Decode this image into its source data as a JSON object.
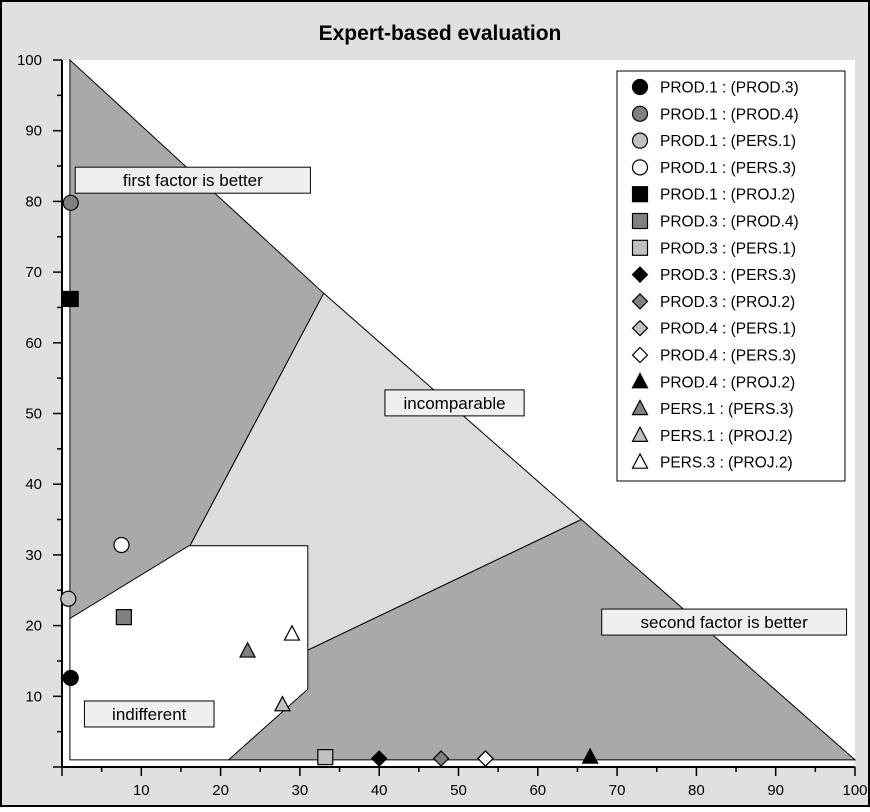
{
  "chart_data": {
    "type": "scatter",
    "title": "Expert-based evaluation",
    "xlabel": "",
    "ylabel": "",
    "xlim": [
      0,
      100
    ],
    "ylim": [
      0,
      100
    ],
    "x_ticks": [
      10,
      20,
      30,
      40,
      50,
      60,
      70,
      80,
      90,
      100
    ],
    "y_ticks": [
      10,
      20,
      30,
      40,
      50,
      60,
      70,
      80,
      90,
      100
    ],
    "grid": false,
    "legend_position": "top-right",
    "regions": [
      {
        "label": "first factor is better",
        "color": "#a9a9a9",
        "label_at": [
          16.5,
          83
        ]
      },
      {
        "label": "incomparable",
        "color": "#dcdcdc",
        "label_at": [
          49.5,
          51.5
        ]
      },
      {
        "label": "second factor is better",
        "color": "#a9a9a9",
        "label_at": [
          83.5,
          20.5
        ]
      },
      {
        "label": "indifferent",
        "color": "#ffffff",
        "label_at": [
          11,
          7.5
        ]
      }
    ],
    "series": [
      {
        "name": "PROD.1 : (PROD.3)",
        "marker": "circle",
        "fill": "#000000",
        "x": 1.1,
        "y": 12.6
      },
      {
        "name": "PROD.1 : (PROD.4)",
        "marker": "circle",
        "fill": "#808080",
        "x": 1.1,
        "y": 79.8
      },
      {
        "name": "PROD.1 : (PERS.1)",
        "marker": "circle",
        "fill": "#c0c0c0",
        "x": 0.8,
        "y": 23.8
      },
      {
        "name": "PROD.1 : (PERS.3)",
        "marker": "circle",
        "fill": "#ffffff",
        "x": 7.5,
        "y": 31.4
      },
      {
        "name": "PROD.1 : (PROJ.2)",
        "marker": "square",
        "fill": "#000000",
        "x": 1.1,
        "y": 66.2
      },
      {
        "name": "PROD.3 : (PROD.4)",
        "marker": "square",
        "fill": "#808080",
        "x": 7.8,
        "y": 21.2
      },
      {
        "name": "PROD.3 : (PERS.1)",
        "marker": "square",
        "fill": "#c0c0c0",
        "x": 33.2,
        "y": 1.4
      },
      {
        "name": "PROD.3 : (PERS.3)",
        "marker": "diamond",
        "fill": "#000000",
        "x": 40.0,
        "y": 1.2
      },
      {
        "name": "PROD.3 : (PROJ.2)",
        "marker": "diamond",
        "fill": "#808080",
        "x": 47.8,
        "y": 1.2
      },
      {
        "name": "PROD.4 : (PERS.1)",
        "marker": "diamond",
        "fill": "#c0c0c0",
        "x": 53.4,
        "y": 1.2
      },
      {
        "name": "PROD.4 : (PERS.3)",
        "marker": "diamond",
        "fill": "#ffffff",
        "x": 53.4,
        "y": 1.2
      },
      {
        "name": "PROD.4 : (PROJ.2)",
        "marker": "triangle",
        "fill": "#000000",
        "x": 66.6,
        "y": 1.4
      },
      {
        "name": "PERS.1 : (PERS.3)",
        "marker": "triangle",
        "fill": "#808080",
        "x": 23.4,
        "y": 16.4
      },
      {
        "name": "PERS.1 : (PROJ.2)",
        "marker": "triangle",
        "fill": "#c0c0c0",
        "x": 27.8,
        "y": 8.8
      },
      {
        "name": "PERS.3 : (PROJ.2)",
        "marker": "triangle",
        "fill": "#ffffff",
        "x": 29.0,
        "y": 18.8
      }
    ]
  }
}
